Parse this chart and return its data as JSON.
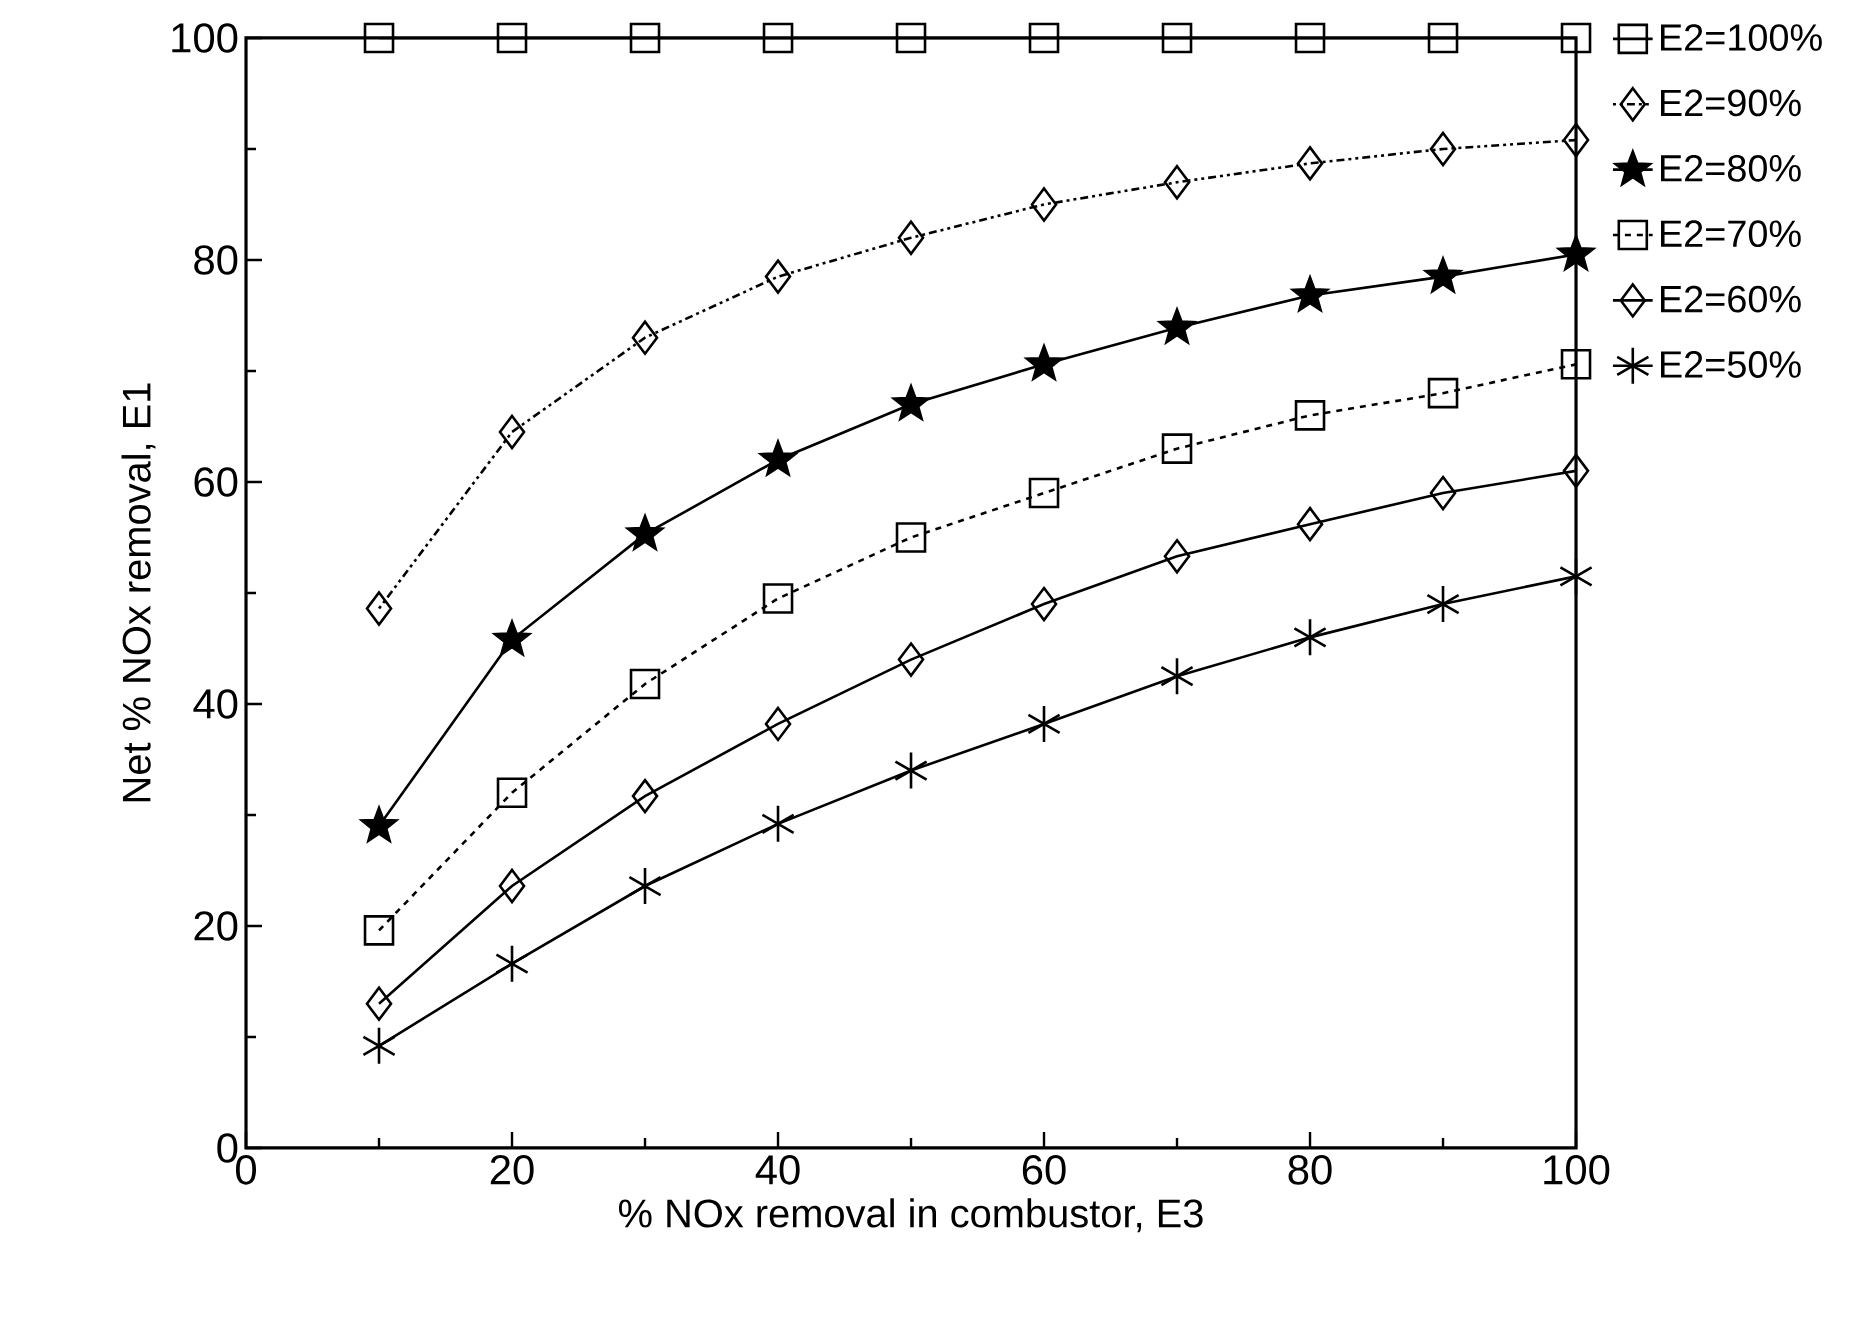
{
  "chart_data": {
    "type": "line",
    "xlabel": "% NOx removal in combustor, E3",
    "ylabel": "Net % NOx removal, E1",
    "x": [
      10,
      20,
      30,
      40,
      50,
      60,
      70,
      80,
      90,
      100
    ],
    "xlim": [
      0,
      100
    ],
    "ylim": [
      0,
      100
    ],
    "xticks": [
      0,
      20,
      40,
      60,
      80,
      100
    ],
    "yticks": [
      0,
      20,
      40,
      60,
      80,
      100
    ],
    "grid": false,
    "legend": "right",
    "series": [
      {
        "name": "E2=100%",
        "color": "#000000",
        "marker": "square",
        "line_style": "solid",
        "values": [
          100,
          100,
          100,
          100,
          100,
          100,
          100,
          100,
          100,
          100
        ]
      },
      {
        "name": "E2=90%",
        "color": "#000000",
        "marker": "diamond",
        "line_style": "dotted",
        "values": [
          48.6,
          64.5,
          73,
          78.5,
          82,
          85,
          87,
          88.7,
          90,
          90.8
        ]
      },
      {
        "name": "E2=80%",
        "color": "#000000",
        "marker": "star",
        "line_style": "solid",
        "values": [
          29,
          45.8,
          55.3,
          62,
          67,
          70.6,
          73.9,
          76.8,
          78.5,
          80.5
        ]
      },
      {
        "name": "E2=70%",
        "color": "#000000",
        "marker": "square",
        "line_style": "dashed",
        "values": [
          19.6,
          32,
          41.8,
          49.5,
          55,
          59,
          63,
          66,
          68,
          70.6
        ]
      },
      {
        "name": "E2=60%",
        "color": "#000000",
        "marker": "diamond",
        "line_style": "solid",
        "values": [
          13,
          23.6,
          31.7,
          38.2,
          44,
          49,
          53.3,
          56.2,
          59,
          61
        ]
      },
      {
        "name": "E2=50%",
        "color": "#000000",
        "marker": "cross",
        "line_style": "solid",
        "values": [
          9.2,
          16.6,
          23.6,
          29.2,
          34,
          38.2,
          42.5,
          46,
          49,
          51.5
        ]
      }
    ]
  }
}
